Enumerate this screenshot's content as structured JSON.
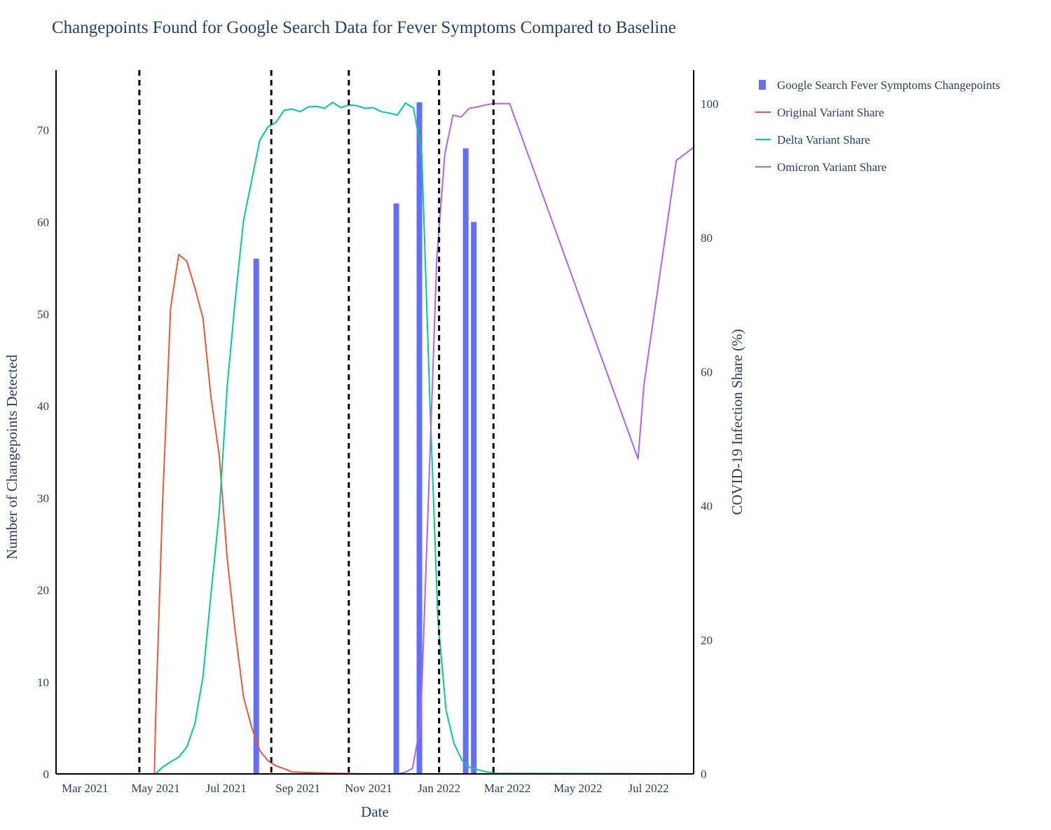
{
  "chart_data": {
    "type": "bar",
    "title": "Changepoints Found for Google Search Data for Fever Symptoms Compared to Baseline",
    "xlabel": "Date",
    "ylabel": "Number of Changepoints Detected",
    "y2label": "COVID-19 Infection Share (%)",
    "xlim": [
      "2021-02-04",
      "2022-08-09"
    ],
    "ylim": [
      0,
      76.5
    ],
    "y2lim": [
      0,
      105
    ],
    "x_ticks": [
      {
        "date": "2021-03-01",
        "label": "Mar 2021"
      },
      {
        "date": "2021-05-01",
        "label": "May 2021"
      },
      {
        "date": "2021-07-01",
        "label": "Jul 2021"
      },
      {
        "date": "2021-09-01",
        "label": "Sep 2021"
      },
      {
        "date": "2021-11-01",
        "label": "Nov 2021"
      },
      {
        "date": "2022-01-01",
        "label": "Jan 2022"
      },
      {
        "date": "2022-03-01",
        "label": "Mar 2022"
      },
      {
        "date": "2022-05-01",
        "label": "May 2022"
      },
      {
        "date": "2022-07-01",
        "label": "Jul 2022"
      }
    ],
    "y_ticks": [
      0,
      10,
      20,
      30,
      40,
      50,
      60,
      70
    ],
    "y2_ticks": [
      0,
      20,
      40,
      60,
      80,
      100
    ],
    "vlines": [
      "2021-04-17",
      "2021-08-09",
      "2021-10-15",
      "2022-01-01",
      "2022-02-17"
    ],
    "legend_position": "top-right, outside plot",
    "bars": {
      "name": "Google Search Fever Symptoms Changepoints",
      "color": "#636efa",
      "points": [
        {
          "date": "2021-07-27",
          "value": 56
        },
        {
          "date": "2021-11-25",
          "value": 62
        },
        {
          "date": "2021-12-15",
          "value": 73
        },
        {
          "date": "2022-01-24",
          "value": 68
        },
        {
          "date": "2022-01-31",
          "value": 60
        }
      ]
    },
    "series": [
      {
        "name": "Original Variant Share",
        "color": "#ef553b",
        "points": [
          [
            "2021-02-04",
            0
          ],
          [
            "2021-04-30",
            0
          ],
          [
            "2021-05-01",
            8
          ],
          [
            "2021-05-07",
            40
          ],
          [
            "2021-05-14",
            69.5
          ],
          [
            "2021-05-21",
            77.5
          ],
          [
            "2021-05-28",
            76.5
          ],
          [
            "2021-06-04",
            72.5
          ],
          [
            "2021-06-11",
            68
          ],
          [
            "2021-06-18",
            56
          ],
          [
            "2021-06-25",
            47.5
          ],
          [
            "2021-07-02",
            32
          ],
          [
            "2021-07-09",
            21
          ],
          [
            "2021-07-16",
            11.5
          ],
          [
            "2021-07-23",
            7
          ],
          [
            "2021-07-30",
            3.5
          ],
          [
            "2021-08-06",
            2
          ],
          [
            "2021-08-13",
            1.2
          ],
          [
            "2021-08-20",
            0.8
          ],
          [
            "2021-08-27",
            0.3
          ],
          [
            "2021-09-10",
            0.2
          ],
          [
            "2021-10-01",
            0.1
          ],
          [
            "2021-11-01",
            0
          ],
          [
            "2022-08-09",
            0
          ]
        ]
      },
      {
        "name": "Delta Variant Share",
        "color": "#00cc96",
        "points": [
          [
            "2021-02-04",
            0
          ],
          [
            "2021-05-01",
            0
          ],
          [
            "2021-05-07",
            1
          ],
          [
            "2021-05-14",
            1.8
          ],
          [
            "2021-05-21",
            2.5
          ],
          [
            "2021-05-28",
            4
          ],
          [
            "2021-06-04",
            7.5
          ],
          [
            "2021-06-11",
            14.5
          ],
          [
            "2021-06-18",
            27
          ],
          [
            "2021-06-25",
            39
          ],
          [
            "2021-07-02",
            58
          ],
          [
            "2021-07-09",
            71
          ],
          [
            "2021-07-16",
            82.5
          ],
          [
            "2021-07-23",
            88.5
          ],
          [
            "2021-07-30",
            94.5
          ],
          [
            "2021-08-06",
            96.5
          ],
          [
            "2021-08-13",
            97.2
          ],
          [
            "2021-08-20",
            99
          ],
          [
            "2021-08-27",
            99.2
          ],
          [
            "2021-09-03",
            98.8
          ],
          [
            "2021-09-10",
            99.5
          ],
          [
            "2021-09-17",
            99.6
          ],
          [
            "2021-09-24",
            99.3
          ],
          [
            "2021-10-01",
            100.2
          ],
          [
            "2021-10-08",
            99.4
          ],
          [
            "2021-10-15",
            99.8
          ],
          [
            "2021-10-22",
            99.7
          ],
          [
            "2021-10-29",
            99.3
          ],
          [
            "2021-11-05",
            99.4
          ],
          [
            "2021-11-12",
            98.8
          ],
          [
            "2021-11-19",
            98.6
          ],
          [
            "2021-11-26",
            98.3
          ],
          [
            "2021-12-03",
            100.1
          ],
          [
            "2021-12-10",
            99.3
          ],
          [
            "2021-12-17",
            92.5
          ],
          [
            "2021-12-24",
            56
          ],
          [
            "2021-12-31",
            23
          ],
          [
            "2022-01-07",
            9.5
          ],
          [
            "2022-01-14",
            4.5
          ],
          [
            "2022-01-21",
            2
          ],
          [
            "2022-01-28",
            0.9
          ],
          [
            "2022-02-04",
            0.6
          ],
          [
            "2022-02-11",
            0.3
          ],
          [
            "2022-02-18",
            0.1
          ],
          [
            "2022-08-09",
            0
          ]
        ]
      },
      {
        "name": "Omicron Variant Share",
        "color": "#ab63fa",
        "points": [
          [
            "2021-02-04",
            0
          ],
          [
            "2021-11-25",
            0
          ],
          [
            "2021-12-02",
            0.2
          ],
          [
            "2021-12-09",
            0.8
          ],
          [
            "2021-12-16",
            7.5
          ],
          [
            "2021-12-23",
            42
          ],
          [
            "2021-12-30",
            77
          ],
          [
            "2022-01-06",
            92.5
          ],
          [
            "2022-01-13",
            98.3
          ],
          [
            "2022-01-20",
            98
          ],
          [
            "2022-01-27",
            99.3
          ],
          [
            "2022-02-03",
            99.5
          ],
          [
            "2022-02-10",
            99.8
          ],
          [
            "2022-02-17",
            100
          ],
          [
            "2022-03-03",
            100
          ],
          [
            "2022-06-22",
            47
          ],
          [
            "2022-06-27",
            58
          ],
          [
            "2022-07-25",
            91.5
          ],
          [
            "2022-08-09",
            93.5
          ]
        ]
      }
    ]
  }
}
